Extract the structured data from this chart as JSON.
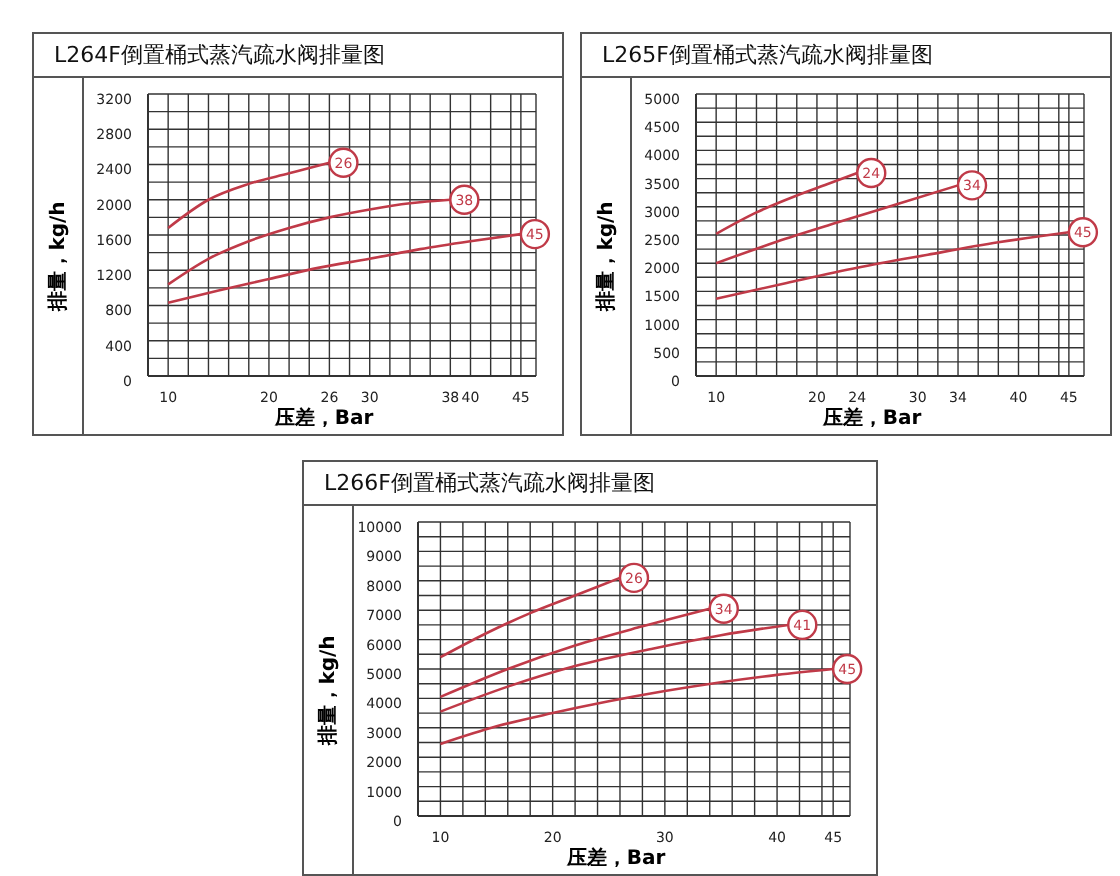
{
  "chart_data": [
    {
      "type": "line",
      "title": "L264F倒置桶式蒸汽疏水阀排量图",
      "xlabel": "压差，Bar",
      "ylabel": "排量，kg/h",
      "xlim": [
        8,
        46.5
      ],
      "xticks": [
        {
          "value": 8,
          "label": null
        },
        10,
        {
          "value": 12,
          "label": null
        },
        {
          "value": 14,
          "label": null
        },
        {
          "value": 16,
          "label": null
        },
        {
          "value": 18,
          "label": null
        },
        20,
        {
          "value": 22,
          "label": null
        },
        {
          "value": 24,
          "label": null
        },
        26,
        {
          "value": 28,
          "label": null
        },
        30,
        {
          "value": 32,
          "label": null
        },
        {
          "value": 34,
          "label": null
        },
        {
          "value": 36,
          "label": null
        },
        38,
        40,
        {
          "value": 42,
          "label": null
        },
        {
          "value": 44,
          "label": null
        },
        45
      ],
      "ylim": [
        0,
        3200
      ],
      "yticks": [
        0,
        {
          "value": 200,
          "label": null
        },
        400,
        {
          "value": 600,
          "label": null
        },
        800,
        {
          "value": 1000,
          "label": null
        },
        1200,
        {
          "value": 1400,
          "label": null
        },
        1600,
        {
          "value": 1800,
          "label": null
        },
        2000,
        {
          "value": 2200,
          "label": null
        },
        2400,
        {
          "value": 2600,
          "label": null
        },
        2800,
        {
          "value": 3000,
          "label": null
        },
        3200
      ],
      "grid": true,
      "series": [
        {
          "color": "#c03a48",
          "x": [
            10,
            14,
            18,
            22,
            26
          ],
          "values": [
            1680,
            2000,
            2180,
            2300,
            2420
          ]
        },
        {
          "color": "#c03a48",
          "x": [
            10,
            14,
            18,
            22,
            26,
            30,
            34,
            38
          ],
          "values": [
            1040,
            1330,
            1530,
            1680,
            1800,
            1890,
            1960,
            2000
          ]
        },
        {
          "color": "#c03a48",
          "x": [
            10,
            15,
            20,
            25,
            30,
            35,
            40,
            45
          ],
          "values": [
            830,
            970,
            1100,
            1230,
            1330,
            1440,
            1530,
            1610
          ]
        }
      ],
      "annotations": [
        {
          "text": "26",
          "x": 26,
          "y": 2420
        },
        {
          "text": "38",
          "x": 38,
          "y": 2000
        },
        {
          "text": "45",
          "x": 45,
          "y": 1610
        }
      ]
    },
    {
      "type": "line",
      "title": "L265F倒置桶式蒸汽疏水阀排量图",
      "xlabel": "压差，Bar",
      "ylabel": "排量，kg/h",
      "xlim": [
        8,
        46.5
      ],
      "xticks": [
        {
          "value": 8,
          "label": null
        },
        10,
        {
          "value": 12,
          "label": null
        },
        {
          "value": 14,
          "label": null
        },
        {
          "value": 16,
          "label": null
        },
        {
          "value": 18,
          "label": null
        },
        20,
        {
          "value": 22,
          "label": null
        },
        24,
        {
          "value": 26,
          "label": null
        },
        {
          "value": 28,
          "label": null
        },
        30,
        {
          "value": 32,
          "label": null
        },
        34,
        {
          "value": 36,
          "label": null
        },
        {
          "value": 38,
          "label": null
        },
        40,
        {
          "value": 42,
          "label": null
        },
        {
          "value": 44,
          "label": null
        },
        45
      ],
      "ylim": [
        0,
        5000
      ],
      "yticks": [
        0,
        {
          "value": 250,
          "label": null
        },
        500,
        {
          "value": 750,
          "label": null
        },
        1000,
        {
          "value": 1250,
          "label": null
        },
        1500,
        {
          "value": 1750,
          "label": null
        },
        2000,
        {
          "value": 2250,
          "label": null
        },
        2500,
        {
          "value": 2750,
          "label": null
        },
        3000,
        {
          "value": 3250,
          "label": null
        },
        3500,
        {
          "value": 3750,
          "label": null
        },
        4000,
        {
          "value": 4250,
          "label": null
        },
        4500,
        {
          "value": 4750,
          "label": null
        },
        5000
      ],
      "grid": true,
      "series": [
        {
          "color": "#c03a48",
          "x": [
            10,
            14,
            18,
            21,
            24
          ],
          "values": [
            2520,
            2900,
            3200,
            3400,
            3600
          ]
        },
        {
          "color": "#c03a48",
          "x": [
            10,
            16,
            22,
            28,
            34
          ],
          "values": [
            2000,
            2380,
            2720,
            3050,
            3380
          ]
        },
        {
          "color": "#c03a48",
          "x": [
            10,
            17,
            24,
            31,
            38,
            45
          ],
          "values": [
            1370,
            1650,
            1920,
            2150,
            2370,
            2550
          ]
        }
      ],
      "annotations": [
        {
          "text": "24",
          "x": 24,
          "y": 3600
        },
        {
          "text": "34",
          "x": 34,
          "y": 3380
        },
        {
          "text": "45",
          "x": 45,
          "y": 2550
        }
      ]
    },
    {
      "type": "line",
      "title": "L266F倒置桶式蒸汽疏水阀排量图",
      "xlabel": "压差，Bar",
      "ylabel": "排量，kg/h",
      "xlim": [
        8,
        46.5
      ],
      "xticks": [
        {
          "value": 8,
          "label": null
        },
        10,
        {
          "value": 12,
          "label": null
        },
        {
          "value": 14,
          "label": null
        },
        {
          "value": 16,
          "label": null
        },
        {
          "value": 18,
          "label": null
        },
        20,
        {
          "value": 22,
          "label": null
        },
        {
          "value": 24,
          "label": null
        },
        {
          "value": 26,
          "label": null
        },
        {
          "value": 28,
          "label": null
        },
        30,
        {
          "value": 32,
          "label": null
        },
        {
          "value": 34,
          "label": null
        },
        {
          "value": 36,
          "label": null
        },
        {
          "value": 38,
          "label": null
        },
        40,
        {
          "value": 42,
          "label": null
        },
        {
          "value": 44,
          "label": null
        },
        45
      ],
      "ylim": [
        0,
        10000
      ],
      "yticks": [
        0,
        {
          "value": 500,
          "label": null
        },
        1000,
        {
          "value": 1500,
          "label": null
        },
        2000,
        {
          "value": 2500,
          "label": null
        },
        3000,
        {
          "value": 3500,
          "label": null
        },
        4000,
        {
          "value": 4500,
          "label": null
        },
        5000,
        {
          "value": 5500,
          "label": null
        },
        6000,
        {
          "value": 6500,
          "label": null
        },
        7000,
        {
          "value": 7500,
          "label": null
        },
        8000,
        {
          "value": 8500,
          "label": null
        },
        9000,
        {
          "value": 9500,
          "label": null
        },
        10000
      ],
      "grid": true,
      "series": [
        {
          "color": "#c03a48",
          "x": [
            10,
            14,
            18,
            22,
            26
          ],
          "values": [
            5400,
            6200,
            6900,
            7500,
            8100
          ]
        },
        {
          "color": "#c03a48",
          "x": [
            10,
            16,
            22,
            28,
            34
          ],
          "values": [
            4050,
            5000,
            5800,
            6450,
            7050
          ]
        },
        {
          "color": "#c03a48",
          "x": [
            10,
            16,
            22,
            29,
            35,
            41
          ],
          "values": [
            3550,
            4400,
            5100,
            5700,
            6150,
            6500
          ]
        },
        {
          "color": "#c03a48",
          "x": [
            10,
            15,
            20,
            25,
            30,
            35,
            40,
            45
          ],
          "values": [
            2450,
            3050,
            3500,
            3900,
            4250,
            4550,
            4800,
            5000
          ]
        }
      ],
      "annotations": [
        {
          "text": "26",
          "x": 26,
          "y": 8100
        },
        {
          "text": "34",
          "x": 34,
          "y": 7050
        },
        {
          "text": "41",
          "x": 41,
          "y": 6500
        },
        {
          "text": "45",
          "x": 45,
          "y": 5000
        }
      ]
    }
  ]
}
